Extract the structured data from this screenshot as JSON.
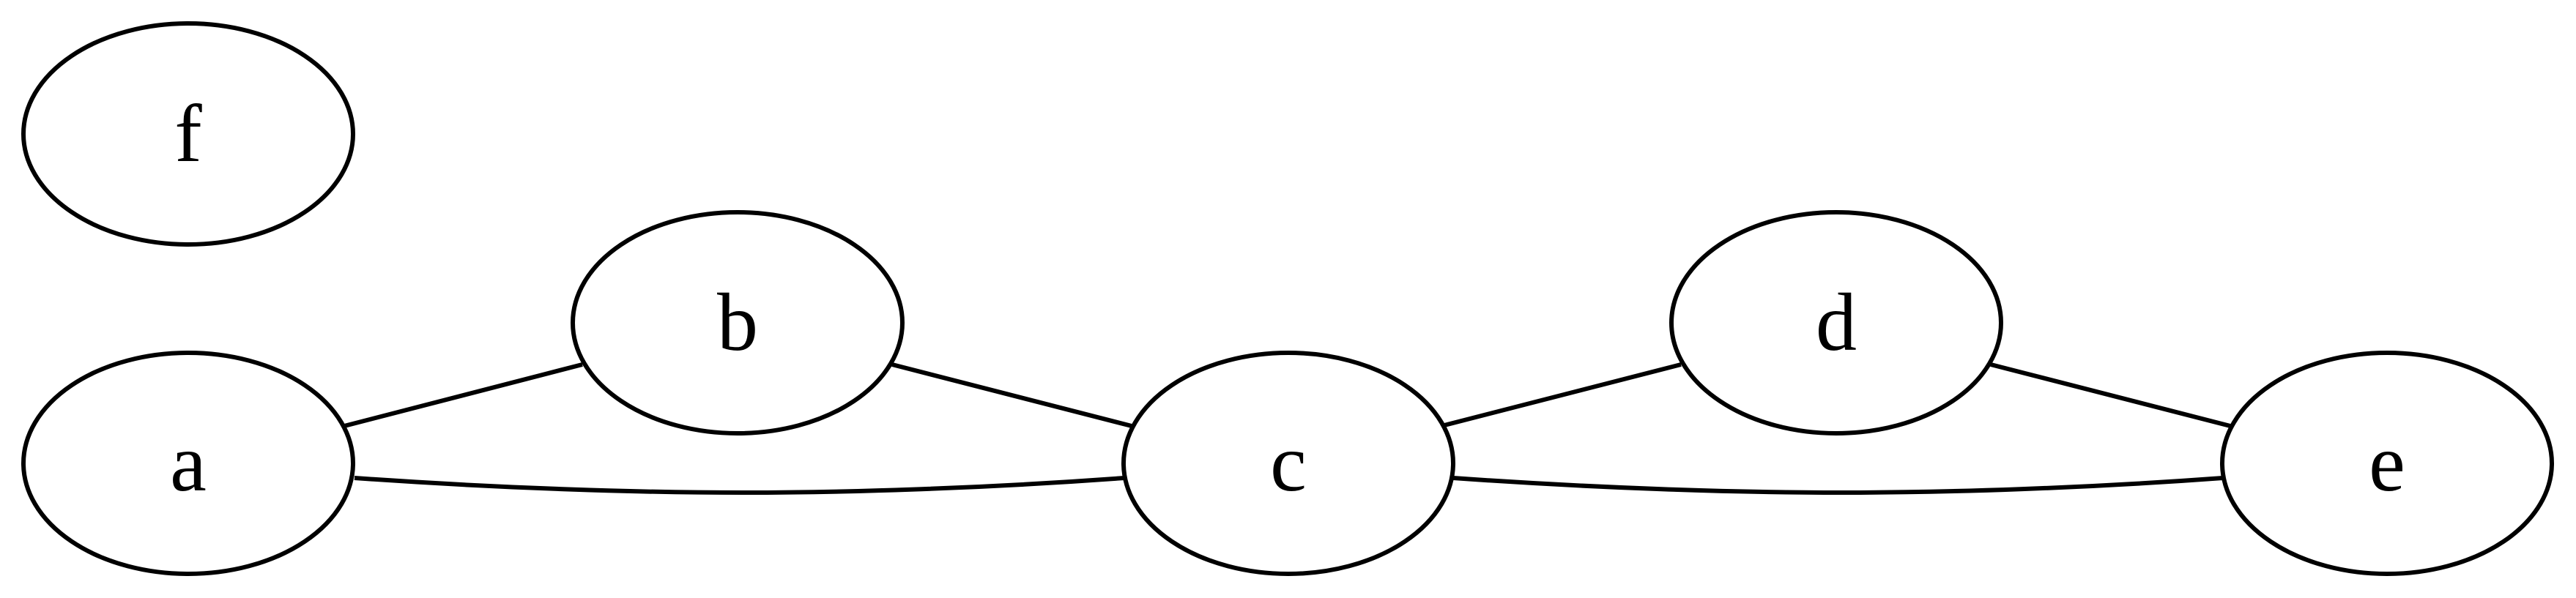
{
  "graph": {
    "nodes": [
      {
        "id": "f",
        "label": "f"
      },
      {
        "id": "b",
        "label": "b"
      },
      {
        "id": "d",
        "label": "d"
      },
      {
        "id": "a",
        "label": "a"
      },
      {
        "id": "c",
        "label": "c"
      },
      {
        "id": "e",
        "label": "e"
      }
    ],
    "edges": [
      {
        "from": "a",
        "to": "b"
      },
      {
        "from": "b",
        "to": "c"
      },
      {
        "from": "a",
        "to": "c"
      },
      {
        "from": "c",
        "to": "d"
      },
      {
        "from": "d",
        "to": "e"
      },
      {
        "from": "c",
        "to": "e"
      }
    ],
    "stroke_color": "#000000",
    "fill_color": "#ffffff"
  }
}
